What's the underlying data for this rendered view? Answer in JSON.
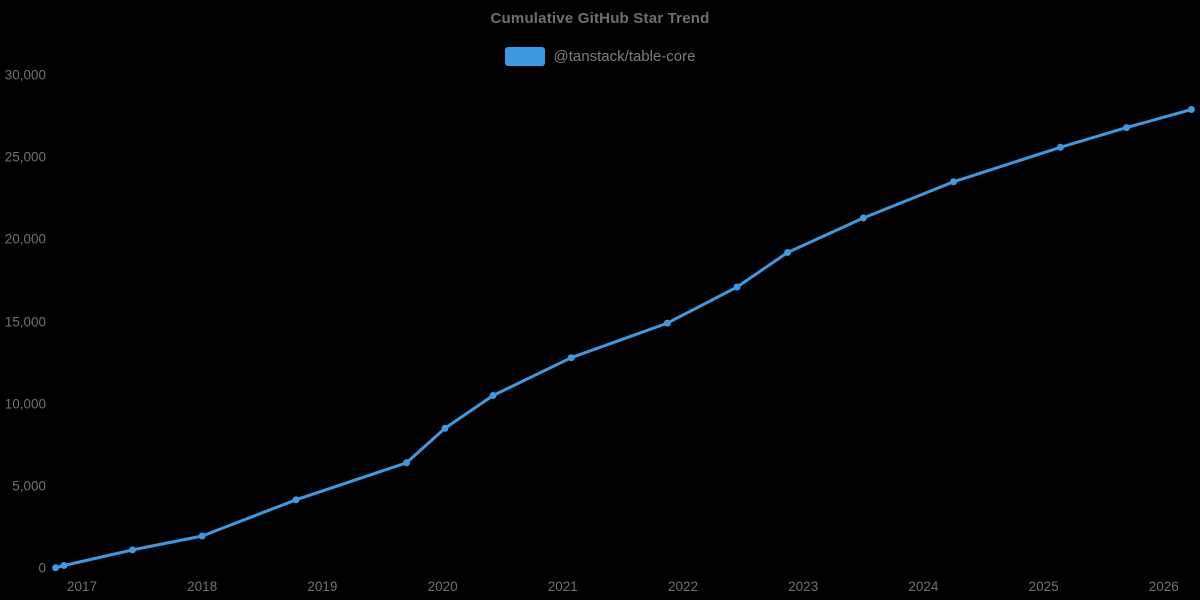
{
  "title": "Cumulative GitHub Star Trend",
  "colors": {
    "background": "#000000",
    "series_blue": "#3b9ae1",
    "title_text": "#6d7073",
    "axis_text": "#6f7275",
    "legend_text": "#7b7e81"
  },
  "chart_data": {
    "type": "line",
    "title": "Cumulative GitHub Star Trend",
    "grid": false,
    "legend_position": "top",
    "xlabel": "",
    "ylabel": "",
    "xlim": [
      2016.68,
      2026.35
    ],
    "ylim": [
      0,
      30000
    ],
    "x_ticks": [
      2017,
      2018,
      2019,
      2020,
      2021,
      2022,
      2023,
      2024,
      2025,
      2026
    ],
    "y_ticks": [
      0,
      5000,
      10000,
      15000,
      20000,
      25000,
      30000
    ],
    "y_tick_labels": [
      "0",
      "5,000",
      "10,000",
      "15,000",
      "20,000",
      "25,000",
      "30,000"
    ],
    "series": [
      {
        "name": "@tanstack/table-core",
        "color": "#3b9ae1",
        "marker": "circle",
        "x": [
          2016.78,
          2016.85,
          2017.42,
          2018.0,
          2018.78,
          2019.7,
          2020.02,
          2020.42,
          2021.07,
          2021.87,
          2022.45,
          2022.87,
          2023.5,
          2024.25,
          2025.14,
          2025.69,
          2026.23
        ],
        "y": [
          20,
          150,
          1100,
          1950,
          4150,
          6400,
          8500,
          10500,
          12800,
          14900,
          17100,
          19200,
          21300,
          23500,
          25600,
          26800,
          27900
        ]
      }
    ]
  }
}
